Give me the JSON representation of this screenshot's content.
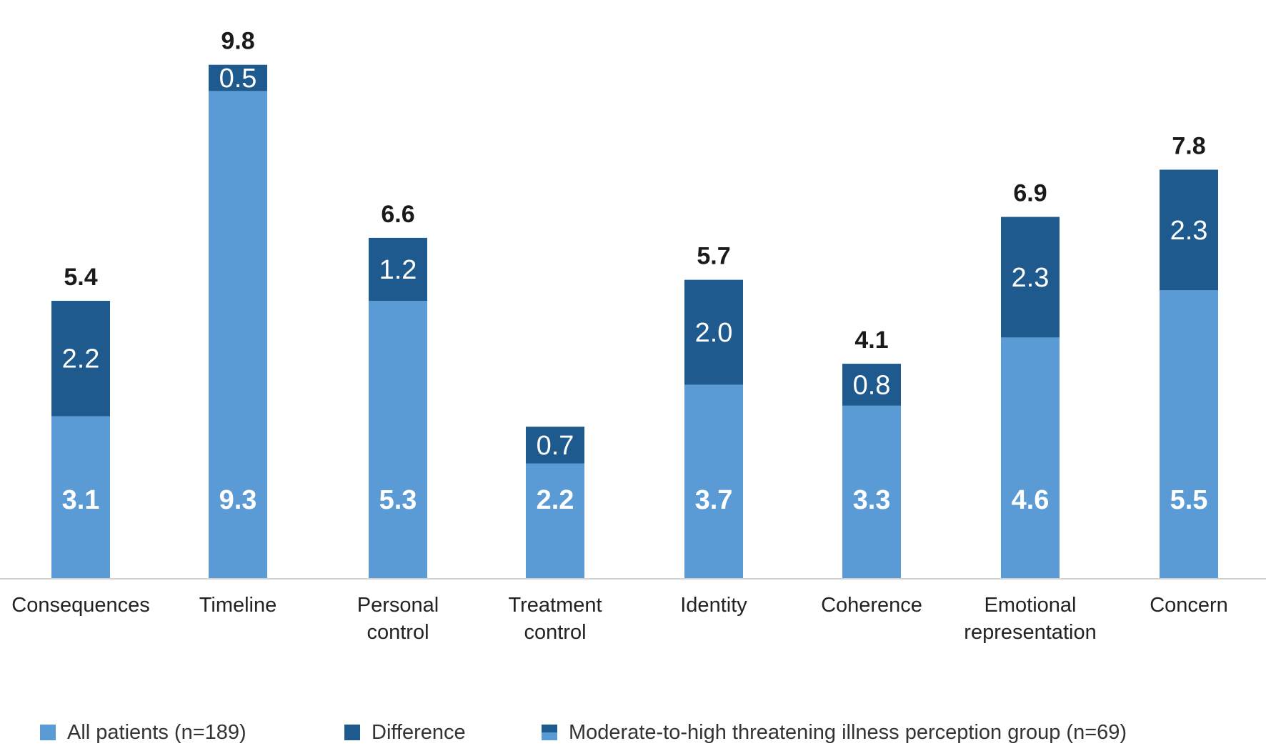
{
  "chart_data": {
    "type": "bar",
    "stacked": true,
    "title": "",
    "xlabel": "",
    "ylabel": "",
    "ylim": [
      0,
      10.5
    ],
    "grid": false,
    "legend_position": "bottom",
    "categories": [
      [
        "Consequences"
      ],
      [
        "Timeline"
      ],
      [
        "Personal",
        "control"
      ],
      [
        "Treatment",
        "control"
      ],
      [
        "Identity"
      ],
      [
        "Coherence"
      ],
      [
        "Emotional",
        "representation"
      ],
      [
        "Concern"
      ]
    ],
    "series": [
      {
        "name": "All patients (n=189)",
        "values": [
          3.1,
          9.3,
          5.3,
          2.2,
          3.7,
          3.3,
          4.6,
          5.5
        ],
        "labels": [
          "3.1",
          "9.3",
          "5.3",
          "2.2",
          "3.7",
          "3.3",
          "4.6",
          "5.5"
        ]
      },
      {
        "name": "Difference",
        "values": [
          2.2,
          0.5,
          1.2,
          0.7,
          2.0,
          0.8,
          2.3,
          2.3
        ],
        "labels": [
          "2.2",
          "0.5",
          "1.2",
          "0.7",
          "2.0",
          "0.8",
          "2.3",
          "2.3"
        ]
      }
    ],
    "totals": [
      5.4,
      9.8,
      6.6,
      2.9,
      5.7,
      4.1,
      6.9,
      7.8
    ],
    "total_labels": [
      "5.4",
      "9.8",
      "6.6",
      "",
      "5.7",
      "4.1",
      "6.9",
      "7.8"
    ],
    "legend": [
      {
        "label": "All patients (n=189)",
        "swatch": "light"
      },
      {
        "label": "Difference",
        "swatch": "dark"
      },
      {
        "label": "Moderate-to-high threatening illness perception group (n=69)",
        "swatch": "split"
      }
    ],
    "colors": {
      "all_patients": "#5b9bd5",
      "difference": "#1f5a8f",
      "axis": "#d0d0d0"
    }
  }
}
